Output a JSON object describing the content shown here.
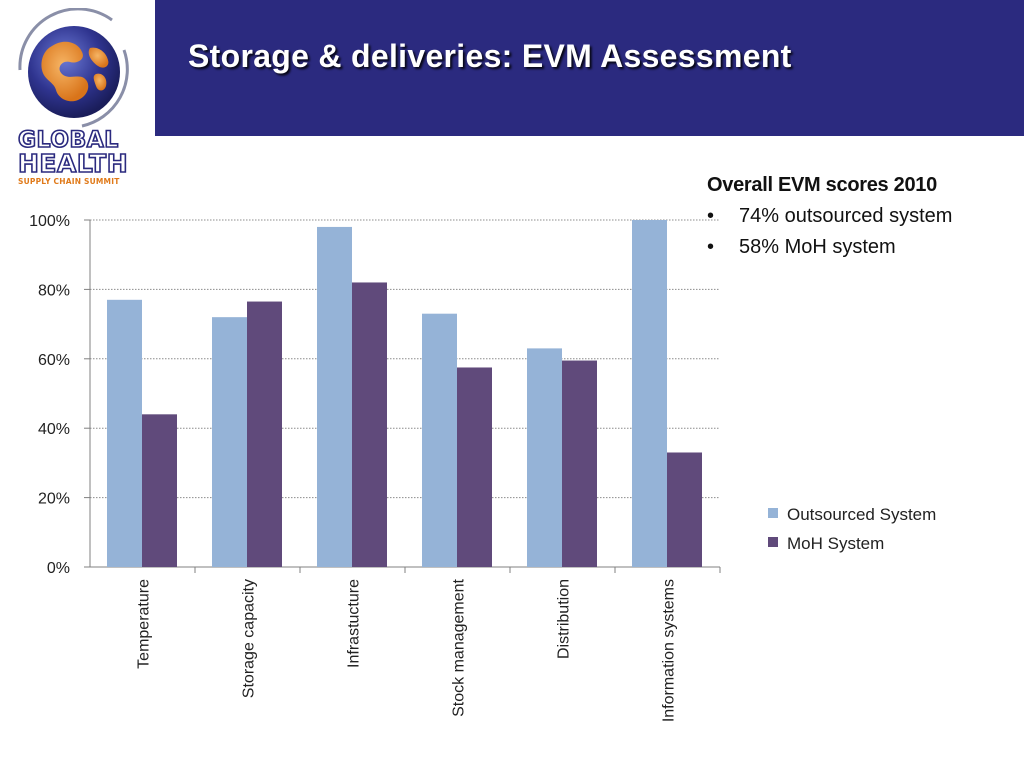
{
  "slide": {
    "title": "Storage & deliveries: EVM Assessment"
  },
  "logo": {
    "line1": "GLOBAL",
    "line2": "HEALTH",
    "line3": "SUPPLY CHAIN SUMMIT"
  },
  "notes": {
    "heading": "Overall EVM scores 2010",
    "bullet_glyph": "•",
    "items": [
      "74% outsourced system",
      "58% MoH system"
    ]
  },
  "colors": {
    "header_band": "#2b2a7f",
    "outsourced": "#95b3d7",
    "moh": "#604a7b",
    "gridline": "#8c8c8c"
  },
  "chart_data": {
    "type": "bar",
    "categories": [
      "Temperature",
      "Storage capacity",
      "Infrastucture",
      "Stock management",
      "Distribution",
      "Information systems"
    ],
    "series": [
      {
        "name": "Outsourced System",
        "color": "#95b3d7",
        "values": [
          77,
          72,
          98,
          73,
          63,
          100
        ]
      },
      {
        "name": "MoH System",
        "color": "#604a7b",
        "values": [
          44,
          76.5,
          82,
          57.5,
          59.5,
          33
        ]
      }
    ],
    "y_ticks": [
      "0%",
      "20%",
      "40%",
      "60%",
      "80%",
      "100%"
    ],
    "ylim": [
      0,
      100
    ],
    "grid": true,
    "legend_position": "right"
  }
}
